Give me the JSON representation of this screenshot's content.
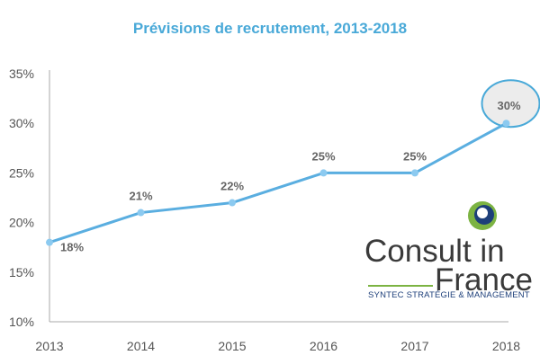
{
  "chart_data": {
    "type": "line",
    "title": "Prévisions de recrutement, 2013-2018",
    "categories": [
      "2013",
      "2014",
      "2015",
      "2016",
      "2017",
      "2018"
    ],
    "series": [
      {
        "values": [
          18,
          21,
          22,
          25,
          25,
          30
        ]
      }
    ],
    "data_labels": [
      "18%",
      "21%",
      "22%",
      "25%",
      "25%",
      "30%"
    ],
    "y_ticks": [
      "10%",
      "15%",
      "20%",
      "25%",
      "30%",
      "35%"
    ],
    "ylim": [
      10,
      35
    ],
    "y_unit": "%",
    "grid": false,
    "highlight": {
      "category": "2018",
      "shape": "circle"
    },
    "colors": {
      "line": "#5aaee0",
      "marker": "#8ccaf0",
      "axis": "#aaaaaa",
      "tick_text": "#555555",
      "label_text": "#666666",
      "title": "#49a9d8",
      "highlight_fill": "#ececec",
      "highlight_stroke": "#49a9d8"
    }
  },
  "logo": {
    "line1": "Consult in",
    "line2": "France",
    "tagline": "SYNTEC STRATÉGIE & MANAGEMENT",
    "colors": {
      "text": "#3a3a3a",
      "tagline": "#1d3f7a",
      "rule": "#7cb342",
      "mark_dark": "#1d3f7a",
      "mark_green": "#7cb342"
    }
  }
}
